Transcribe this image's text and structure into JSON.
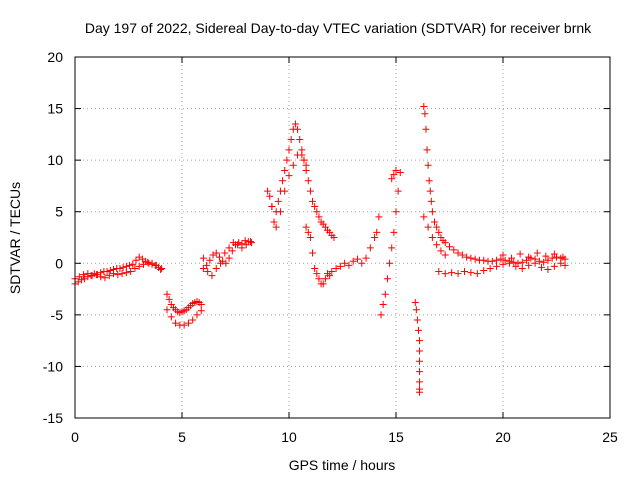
{
  "chart_data": {
    "type": "scatter",
    "title": "Day 197 of 2022, Sidereal Day-to-day VTEC variation (SDTVAR) for receiver brnk",
    "xlabel": "GPS time / hours",
    "ylabel": "SDTVAR / TECUs",
    "xlim": [
      0,
      25
    ],
    "ylim": [
      -15,
      20
    ],
    "xticks": [
      0,
      5,
      10,
      15,
      20,
      25
    ],
    "yticks": [
      -15,
      -10,
      -5,
      0,
      5,
      10,
      15,
      20
    ],
    "grid": true,
    "marker": "plus",
    "color": "#ff0000",
    "series": [
      {
        "name": "SDTVAR",
        "x": [
          0.0,
          0.15,
          0.3,
          0.45,
          0.6,
          0.75,
          0.9,
          1.05,
          1.2,
          1.35,
          1.5,
          1.65,
          1.8,
          1.95,
          2.1,
          2.25,
          2.4,
          2.55,
          2.7,
          2.85,
          3.0,
          3.15,
          3.3,
          3.45,
          3.6,
          3.75,
          3.9,
          4.05,
          0.0,
          0.2,
          0.4,
          0.6,
          0.8,
          1.0,
          1.2,
          1.4,
          1.6,
          1.8,
          2.0,
          2.2,
          2.4,
          2.6,
          2.8,
          3.0,
          3.2,
          3.4,
          3.6,
          3.8,
          4.0,
          4.3,
          4.4,
          4.5,
          4.6,
          4.7,
          4.8,
          4.9,
          5.0,
          5.1,
          5.2,
          5.3,
          5.4,
          5.5,
          5.6,
          5.7,
          5.8,
          5.9,
          4.3,
          4.5,
          4.7,
          4.9,
          5.1,
          5.3,
          5.5,
          5.7,
          5.9,
          6.0,
          6.15,
          6.3,
          6.45,
          6.6,
          6.75,
          6.9,
          7.05,
          7.2,
          7.35,
          7.5,
          7.65,
          7.8,
          7.95,
          8.1,
          8.25,
          6.0,
          6.2,
          6.4,
          6.6,
          6.8,
          7.0,
          7.2,
          7.4,
          7.6,
          7.8,
          8.0,
          8.2,
          9.0,
          9.1,
          9.2,
          9.3,
          9.4,
          9.5,
          9.6,
          9.7,
          9.8,
          9.9,
          10.0,
          10.1,
          10.2,
          10.3,
          10.4,
          10.5,
          10.6,
          10.7,
          10.8,
          10.9,
          11.0,
          11.1,
          11.2,
          11.3,
          11.4,
          11.5,
          11.6,
          11.7,
          11.8,
          11.9,
          12.0,
          12.1,
          9.2,
          9.4,
          9.6,
          9.8,
          10.0,
          10.2,
          10.4,
          10.6,
          10.7,
          10.8,
          10.8,
          10.9,
          11.0,
          11.1,
          11.2,
          11.3,
          11.4,
          11.5,
          11.6,
          11.7,
          11.8,
          11.9,
          12.0,
          12.2,
          12.4,
          12.6,
          12.8,
          13.0,
          13.2,
          13.4,
          13.6,
          13.8,
          14.0,
          14.1,
          14.2,
          14.3,
          14.4,
          14.5,
          14.6,
          14.7,
          14.8,
          14.9,
          15.0,
          15.1,
          15.2,
          14.8,
          14.9,
          15.0,
          15.9,
          15.95,
          16.0,
          16.05,
          16.1,
          16.1,
          16.1,
          16.1,
          16.1,
          16.1,
          16.1,
          16.3,
          16.35,
          16.4,
          16.45,
          16.5,
          16.55,
          16.6,
          16.65,
          16.7,
          16.8,
          16.9,
          17.0,
          17.1,
          17.2,
          17.3,
          17.5,
          17.7,
          17.9,
          18.1,
          18.3,
          18.5,
          18.7,
          18.9,
          19.1,
          19.3,
          19.5,
          19.7,
          19.9,
          20.1,
          20.3,
          20.5,
          20.7,
          20.9,
          21.1,
          21.3,
          21.5,
          21.7,
          21.9,
          22.1,
          22.3,
          22.5,
          22.7,
          22.9,
          16.3,
          16.5,
          16.7,
          16.9,
          17.1,
          17.3,
          17.0,
          17.3,
          17.6,
          17.9,
          18.2,
          18.5,
          18.8,
          19.1,
          19.4,
          19.7,
          20.0,
          20.3,
          20.6,
          20.9,
          21.2,
          21.5,
          21.8,
          22.1,
          22.4,
          22.7,
          22.9,
          20.0,
          20.4,
          20.8,
          21.2,
          21.6,
          22.0,
          22.4,
          22.8
        ],
        "y": [
          -2.0,
          -1.8,
          -1.6,
          -1.5,
          -1.3,
          -1.2,
          -1.0,
          -1.1,
          -0.9,
          -0.8,
          -0.8,
          -0.7,
          -0.6,
          -0.5,
          -0.5,
          -0.4,
          -0.3,
          -0.2,
          -0.1,
          0.3,
          0.6,
          0.4,
          0.2,
          0.0,
          -0.1,
          -0.2,
          -0.4,
          -0.5,
          -1.5,
          -1.3,
          -1.1,
          -1.0,
          -1.2,
          -1.1,
          -1.3,
          -1.4,
          -1.2,
          -1.0,
          -1.1,
          -1.0,
          -0.9,
          -0.8,
          -0.5,
          -0.3,
          -0.1,
          0.1,
          0.0,
          -0.2,
          -0.6,
          -3.0,
          -3.5,
          -4.0,
          -4.3,
          -4.5,
          -4.7,
          -4.8,
          -4.7,
          -4.6,
          -4.5,
          -4.3,
          -4.1,
          -3.9,
          -3.8,
          -3.7,
          -3.8,
          -4.0,
          -4.5,
          -5.2,
          -5.8,
          -6.0,
          -6.0,
          -5.8,
          -5.5,
          -5.0,
          -4.6,
          -0.5,
          -0.2,
          0.3,
          0.8,
          1.0,
          0.6,
          0.2,
          0.0,
          0.5,
          1.2,
          1.8,
          2.0,
          1.9,
          2.2,
          2.1,
          2.0,
          0.5,
          -0.8,
          -1.2,
          -0.5,
          0.0,
          1.0,
          1.5,
          2.0,
          1.8,
          1.5,
          1.8,
          2.1,
          7.0,
          6.5,
          5.5,
          4.0,
          5.0,
          6.0,
          7.0,
          8.0,
          9.0,
          10.0,
          11.0,
          12.0,
          13.0,
          13.5,
          13.0,
          12.0,
          11.0,
          10.0,
          9.0,
          8.0,
          7.0,
          6.0,
          5.5,
          5.0,
          4.5,
          4.0,
          3.8,
          3.5,
          3.2,
          3.0,
          2.7,
          2.5,
          5.5,
          3.5,
          5.0,
          7.0,
          8.5,
          9.5,
          10.5,
          10.5,
          10.0,
          9.5,
          3.5,
          3.0,
          2.5,
          1.0,
          -0.5,
          -1.0,
          -1.5,
          -2.0,
          -2.0,
          -1.5,
          -1.0,
          -1.2,
          -0.8,
          -0.5,
          -0.3,
          0.0,
          -0.2,
          0.2,
          0.4,
          0.0,
          0.5,
          1.5,
          2.5,
          3.0,
          4.5,
          -5.0,
          -4.0,
          -3.0,
          -1.5,
          0.0,
          1.5,
          3.0,
          5.0,
          7.0,
          8.8,
          8.2,
          8.6,
          9.0,
          -3.8,
          -4.5,
          -5.5,
          -6.5,
          -7.5,
          -8.5,
          -9.5,
          -10.5,
          -11.5,
          -12.2,
          -12.5,
          15.2,
          14.5,
          13.0,
          11.0,
          9.5,
          8.0,
          7.0,
          6.0,
          5.0,
          4.0,
          3.5,
          3.0,
          2.5,
          2.2,
          2.0,
          1.6,
          1.3,
          1.0,
          0.8,
          0.6,
          0.5,
          0.4,
          0.3,
          0.3,
          0.2,
          0.2,
          0.3,
          0.4,
          0.3,
          0.2,
          0.1,
          0.0,
          0.1,
          0.3,
          0.5,
          0.4,
          0.2,
          0.1,
          0.3,
          0.5,
          0.6,
          0.5,
          0.4,
          4.5,
          3.5,
          2.5,
          1.8,
          1.2,
          0.8,
          -0.8,
          -1.0,
          -0.9,
          -1.0,
          -0.8,
          -0.9,
          -1.0,
          -0.7,
          -0.5,
          -0.3,
          -0.1,
          0.0,
          -0.3,
          -0.5,
          -0.2,
          0.0,
          -0.4,
          -0.6,
          -0.3,
          0.0,
          -0.2,
          0.8,
          0.5,
          0.9,
          0.6,
          1.0,
          0.7,
          0.9,
          0.6
        ]
      }
    ]
  }
}
